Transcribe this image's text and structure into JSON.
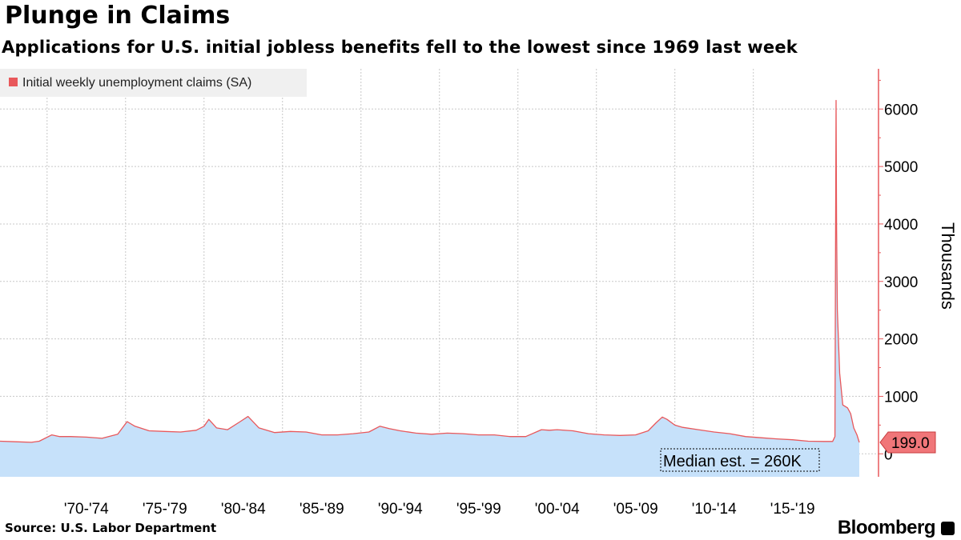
{
  "header": {
    "title": "Plunge in Claims",
    "subtitle": "Applications for U.S. initial jobless benefits fell to the lowest since 1969 last week"
  },
  "footer": {
    "source": "Source: U.S. Labor Department",
    "brand": "Bloomberg"
  },
  "colors": {
    "line": "#e8585b",
    "fill": "#c6e1fa",
    "legend_bg": "#f0f0f0",
    "grid": "#c8c8c8",
    "last_value_bg": "#f07679"
  },
  "chart_data": {
    "type": "area",
    "title": "Plunge in Claims",
    "ylabel": "Thousands",
    "ylim": [
      -400,
      6700
    ],
    "yticks": [
      0,
      1000,
      2000,
      3000,
      4000,
      5000,
      6000
    ],
    "ytick_labels": [
      "0",
      "1000",
      "2000",
      "3000",
      "4000",
      "5000",
      "6000"
    ],
    "xlim": [
      1967.0,
      2021.75
    ],
    "xtick_labels": [
      "'70-'74",
      "'75-'79",
      "'80-'84",
      "'85-'89",
      "'90-'94",
      "'95-'99",
      "'00-'04",
      "'05-'09",
      "'10-'14",
      "'15-'19"
    ],
    "xtick_positions": [
      1970,
      1975,
      1980,
      1985,
      1990,
      1995,
      2000,
      2005,
      2010,
      2015
    ],
    "grid": true,
    "legend_position": "top-left",
    "series": [
      {
        "name": "Initial weekly unemployment claims (SA)",
        "x": [
          1967.0,
          1968.0,
          1969.0,
          1969.5,
          1970.3,
          1970.8,
          1971.5,
          1972.5,
          1973.5,
          1974.5,
          1975.1,
          1975.6,
          1976.5,
          1977.5,
          1978.5,
          1979.5,
          1980.0,
          1980.3,
          1980.8,
          1981.5,
          1982.3,
          1982.8,
          1983.5,
          1984.5,
          1985.5,
          1986.5,
          1987.5,
          1988.5,
          1989.5,
          1990.5,
          1991.2,
          1991.8,
          1992.5,
          1993.5,
          1994.5,
          1995.5,
          1996.5,
          1997.5,
          1998.5,
          1999.5,
          2000.5,
          2001.5,
          2002.0,
          2002.5,
          2003.5,
          2004.5,
          2005.5,
          2006.5,
          2007.5,
          2008.3,
          2008.8,
          2009.2,
          2009.5,
          2010.0,
          2010.5,
          2011.5,
          2012.5,
          2013.5,
          2014.5,
          2015.5,
          2016.5,
          2017.5,
          2018.5,
          2019.5,
          2020.05,
          2020.2,
          2020.23,
          2020.27,
          2020.3,
          2020.35,
          2020.5,
          2020.7,
          2021.0,
          2021.2,
          2021.4,
          2021.6,
          2021.75
        ],
        "values": [
          220,
          210,
          200,
          220,
          330,
          300,
          300,
          290,
          270,
          340,
          560,
          480,
          400,
          390,
          380,
          410,
          480,
          600,
          450,
          420,
          560,
          650,
          450,
          370,
          390,
          380,
          330,
          330,
          350,
          380,
          480,
          440,
          400,
          360,
          340,
          360,
          350,
          330,
          330,
          300,
          300,
          420,
          410,
          420,
          400,
          350,
          330,
          320,
          330,
          400,
          540,
          640,
          600,
          500,
          460,
          420,
          380,
          350,
          300,
          280,
          260,
          245,
          220,
          215,
          215,
          300,
          3000,
          6150,
          4000,
          2500,
          1400,
          850,
          800,
          700,
          450,
          330,
          199
        ]
      }
    ],
    "last_value_label": "199.0",
    "annotations": [
      {
        "text": "Median est. = 260K"
      }
    ]
  }
}
